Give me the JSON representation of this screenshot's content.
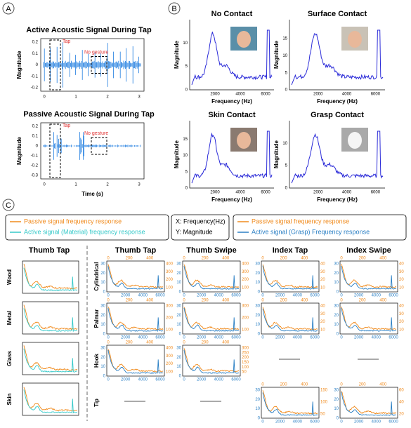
{
  "panel_a": {
    "label": "A",
    "plots": [
      {
        "title": "Active Acoustic Signal During Tap",
        "y_label": "Magnitude",
        "yticks": [
          "0.2",
          "0.1",
          "0",
          "-0.1",
          "-0.2"
        ],
        "xticks": [
          "0",
          "1",
          "2",
          "3"
        ],
        "annotations": [
          "Tap",
          "No gesture"
        ]
      },
      {
        "title": "Passive Acoustic Signal During Tap",
        "y_label": "Magnitude",
        "yticks": [
          "0.2",
          "0.1",
          "0",
          "-0.1",
          "-0.2",
          "-0.3"
        ],
        "xticks": [
          "0",
          "1",
          "2",
          "3"
        ],
        "annotations": [
          "Tap",
          "No gesture"
        ],
        "x_label": "Time (s)"
      }
    ]
  },
  "panel_b": {
    "label": "B",
    "x_label": "Frequency (Hz)",
    "y_label": "Magnitude",
    "xticks": [
      "2000",
      "4000",
      "6000"
    ],
    "plots": [
      {
        "title": "No Contact",
        "yticks": [
          "0",
          "5",
          "10"
        ]
      },
      {
        "title": "Surface Contact",
        "yticks": [
          "0",
          "5",
          "10",
          "15"
        ]
      },
      {
        "title": "Skin Contact",
        "yticks": [
          "0",
          "5",
          "10",
          "15"
        ]
      },
      {
        "title": "Grasp Contact",
        "yticks": [
          "0",
          "5",
          "10"
        ]
      }
    ]
  },
  "panel_c": {
    "label": "C",
    "legend_left": [
      "Passive signal  frequency response",
      "Active signal (Material) frequency response"
    ],
    "legend_mid": [
      "X: Frequency(Hz)",
      "Y: Magnitude"
    ],
    "legend_right": [
      "Passive signal  frequency response",
      "Active signal (Grasp) Frequency response"
    ],
    "material": {
      "title": "Thumb Tap",
      "rows": [
        "Wood",
        "Metal",
        "Glass",
        "Skin"
      ]
    },
    "grasp": {
      "columns": [
        "Thumb Tap",
        "Thumb Swipe",
        "Index Tap",
        "Index Swipe"
      ],
      "rows": [
        "Cylindrical",
        "Palmar",
        "Hook",
        "Tip"
      ],
      "left_ticks": [
        "0",
        "10",
        "20",
        "30"
      ],
      "bottom_ticks": [
        "0",
        "2000",
        "4000",
        "6000"
      ],
      "top_ticks": [
        "0",
        "200",
        "400"
      ],
      "cells": [
        [
          {
            "right_ticks": [
              "100",
              "200",
              "300",
              "400"
            ]
          },
          {
            "right_ticks": [
              "100",
              "200",
              "300",
              "400"
            ]
          },
          {
            "right_ticks": [
              "10",
              "20",
              "30",
              "40"
            ]
          },
          {
            "right_ticks": [
              "10",
              "20",
              "30",
              "40"
            ]
          }
        ],
        [
          {
            "right_ticks": [
              "100",
              "200",
              "300"
            ]
          },
          {
            "right_ticks": [
              "100",
              "200",
              "300"
            ]
          },
          {
            "right_ticks": [
              "10",
              "20",
              "30",
              "40"
            ]
          },
          {
            "right_ticks": [
              "10",
              "20",
              "30",
              "40"
            ]
          }
        ],
        [
          {
            "right_ticks": [
              "100",
              "200",
              "300",
              "400"
            ]
          },
          {
            "right_ticks": [
              "50",
              "100",
              "150",
              "200",
              "250",
              "300"
            ]
          },
          null,
          null
        ],
        [
          null,
          null,
          {
            "right_ticks": [
              "50",
              "100",
              "150"
            ]
          },
          {
            "right_ticks": [
              "20",
              "40",
              "60"
            ]
          }
        ]
      ]
    }
  }
}
